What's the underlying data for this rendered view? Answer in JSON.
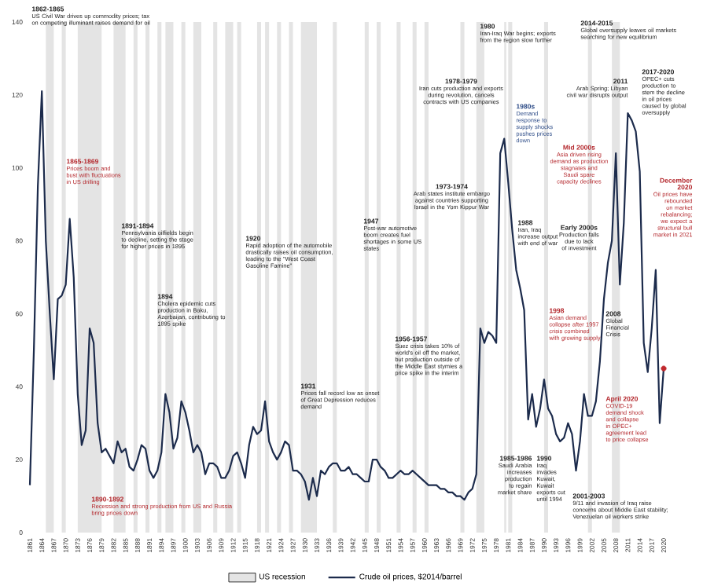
{
  "chart_data": {
    "type": "line",
    "xlim": [
      1861,
      2020
    ],
    "ylim": [
      0,
      140
    ],
    "xticks": [
      1861,
      1864,
      1867,
      1870,
      1873,
      1876,
      1879,
      1882,
      1885,
      1888,
      1891,
      1894,
      1897,
      1900,
      1903,
      1906,
      1909,
      1912,
      1915,
      1918,
      1921,
      1924,
      1927,
      1930,
      1933,
      1936,
      1939,
      1942,
      1945,
      1948,
      1951,
      1954,
      1957,
      1960,
      1963,
      1966,
      1969,
      1972,
      1975,
      1978,
      1981,
      1984,
      1987,
      1990,
      1993,
      1996,
      1999,
      2002,
      2005,
      2008,
      2011,
      2014,
      2017,
      2020
    ],
    "yticks": [
      0,
      20,
      40,
      60,
      80,
      100,
      120,
      140
    ],
    "x": [
      1861,
      1862,
      1863,
      1864,
      1865,
      1866,
      1867,
      1868,
      1869,
      1870,
      1871,
      1872,
      1873,
      1874,
      1875,
      1876,
      1877,
      1878,
      1879,
      1880,
      1881,
      1882,
      1883,
      1884,
      1885,
      1886,
      1887,
      1888,
      1889,
      1890,
      1891,
      1892,
      1893,
      1894,
      1895,
      1896,
      1897,
      1898,
      1899,
      1900,
      1901,
      1902,
      1903,
      1904,
      1905,
      1906,
      1907,
      1908,
      1909,
      1910,
      1911,
      1912,
      1913,
      1914,
      1915,
      1916,
      1917,
      1918,
      1919,
      1920,
      1921,
      1922,
      1923,
      1924,
      1925,
      1926,
      1927,
      1928,
      1929,
      1930,
      1931,
      1932,
      1933,
      1934,
      1935,
      1936,
      1937,
      1938,
      1939,
      1940,
      1941,
      1942,
      1943,
      1944,
      1945,
      1946,
      1947,
      1948,
      1949,
      1950,
      1951,
      1952,
      1953,
      1954,
      1955,
      1956,
      1957,
      1958,
      1959,
      1960,
      1961,
      1962,
      1963,
      1964,
      1965,
      1966,
      1967,
      1968,
      1969,
      1970,
      1971,
      1972,
      1973,
      1974,
      1975,
      1976,
      1977,
      1978,
      1979,
      1980,
      1981,
      1982,
      1983,
      1984,
      1985,
      1986,
      1987,
      1988,
      1989,
      1990,
      1991,
      1992,
      1993,
      1994,
      1995,
      1996,
      1997,
      1998,
      1999,
      2000,
      2001,
      2002,
      2003,
      2004,
      2005,
      2006,
      2007,
      2008,
      2009,
      2010,
      2011,
      2012,
      2013,
      2014,
      2015,
      2016,
      2017,
      2018,
      2019,
      2020
    ],
    "series": [
      {
        "name": "Crude oil prices, $2014/barrel",
        "color": "#1c2b4c",
        "values": [
          13,
          50,
          95,
          121,
          80,
          60,
          42,
          64,
          65,
          68,
          86,
          70,
          38,
          24,
          28,
          56,
          52,
          30,
          22,
          23,
          21,
          19,
          25,
          22,
          23,
          18,
          17,
          20,
          24,
          23,
          17,
          15,
          17,
          22,
          38,
          33,
          23,
          26,
          36,
          33,
          28,
          22,
          24,
          22,
          16,
          19,
          19,
          18,
          15,
          15,
          17,
          21,
          22,
          19,
          15,
          24,
          29,
          27,
          28,
          36,
          25,
          22,
          20,
          22,
          25,
          24,
          17,
          17,
          16,
          14,
          9,
          15,
          10,
          17,
          16,
          18,
          19,
          19,
          17,
          17,
          18,
          16,
          16,
          15,
          14,
          14,
          20,
          20,
          18,
          17,
          15,
          15,
          16,
          17,
          16,
          16,
          17,
          16,
          15,
          14,
          13,
          13,
          13,
          12,
          12,
          11,
          11,
          10,
          10,
          9,
          11,
          12,
          16,
          56,
          52,
          55,
          54,
          52,
          104,
          108,
          96,
          83,
          72,
          67,
          61,
          31,
          38,
          29,
          34,
          42,
          34,
          32,
          27,
          25,
          26,
          30,
          27,
          17,
          25,
          38,
          32,
          32,
          36,
          47,
          64,
          74,
          80,
          104,
          68,
          85,
          115,
          113,
          110,
          99,
          52,
          44,
          56,
          72,
          30,
          45
        ]
      },
      {
        "type": "scatter",
        "color": "#c0282d",
        "x": [
          2020
        ],
        "values": [
          45
        ]
      }
    ],
    "bands": [
      {
        "axis": "x",
        "from": 1865,
        "to": 1867,
        "label": "US recession",
        "color": "#e4e4e4"
      },
      {
        "axis": "x",
        "from": 1869,
        "to": 1870,
        "color": "#e4e4e4"
      },
      {
        "axis": "x",
        "from": 1873,
        "to": 1879,
        "color": "#e4e4e4"
      },
      {
        "axis": "x",
        "from": 1882,
        "to": 1885,
        "color": "#e4e4e4"
      },
      {
        "axis": "x",
        "from": 1887,
        "to": 1888,
        "color": "#e4e4e4"
      },
      {
        "axis": "x",
        "from": 1890,
        "to": 1891,
        "color": "#e4e4e4"
      },
      {
        "axis": "x",
        "from": 1893,
        "to": 1894,
        "color": "#e4e4e4"
      },
      {
        "axis": "x",
        "from": 1895,
        "to": 1897,
        "color": "#e4e4e4"
      },
      {
        "axis": "x",
        "from": 1899,
        "to": 1900,
        "color": "#e4e4e4"
      },
      {
        "axis": "x",
        "from": 1902,
        "to": 1904,
        "color": "#e4e4e4"
      },
      {
        "axis": "x",
        "from": 1907,
        "to": 1908,
        "color": "#e4e4e4"
      },
      {
        "axis": "x",
        "from": 1910,
        "to": 1912,
        "color": "#e4e4e4"
      },
      {
        "axis": "x",
        "from": 1913,
        "to": 1914,
        "color": "#e4e4e4"
      },
      {
        "axis": "x",
        "from": 1918,
        "to": 1919,
        "color": "#e4e4e4"
      },
      {
        "axis": "x",
        "from": 1920,
        "to": 1921,
        "color": "#e4e4e4"
      },
      {
        "axis": "x",
        "from": 1923,
        "to": 1924,
        "color": "#e4e4e4"
      },
      {
        "axis": "x",
        "from": 1926,
        "to": 1927,
        "color": "#e4e4e4"
      },
      {
        "axis": "x",
        "from": 1929,
        "to": 1933,
        "color": "#e4e4e4"
      },
      {
        "axis": "x",
        "from": 1937,
        "to": 1938,
        "color": "#e4e4e4"
      },
      {
        "axis": "x",
        "from": 1945,
        "to": 1946,
        "color": "#e4e4e4"
      },
      {
        "axis": "x",
        "from": 1948,
        "to": 1949,
        "color": "#e4e4e4"
      },
      {
        "axis": "x",
        "from": 1953,
        "to": 1954,
        "color": "#e4e4e4"
      },
      {
        "axis": "x",
        "from": 1957,
        "to": 1958,
        "color": "#e4e4e4"
      },
      {
        "axis": "x",
        "from": 1960,
        "to": 1961,
        "color": "#e4e4e4"
      },
      {
        "axis": "x",
        "from": 1969,
        "to": 1970,
        "color": "#e4e4e4"
      },
      {
        "axis": "x",
        "from": 1973,
        "to": 1975,
        "color": "#e4e4e4"
      },
      {
        "axis": "x",
        "from": 1980,
        "to": 1980.5,
        "color": "#e4e4e4"
      },
      {
        "axis": "x",
        "from": 1981,
        "to": 1982,
        "color": "#e4e4e4"
      },
      {
        "axis": "x",
        "from": 1990,
        "to": 1991,
        "color": "#e4e4e4"
      },
      {
        "axis": "x",
        "from": 2001,
        "to": 2002,
        "color": "#e4e4e4"
      },
      {
        "axis": "x",
        "from": 2007,
        "to": 2009,
        "color": "#e4e4e4"
      }
    ],
    "legend": "bottom",
    "marker": "none",
    "line_style": "solid",
    "grid": false,
    "annotations": [
      "1862-1865",
      "US Civil War drives up commodity prices; tax on competing illuminant raises demand for oil",
      "1865-1869",
      "Prices boom and bust with fluctuations in US drilling",
      "1891-1894",
      "Pennsylvania oilfields begin to decline, setting the stage for higher prices in 1895",
      "1894",
      "Cholera epidemic cuts production in Baku, Azerbaijan, contributing to 1895 spike",
      "1890-1892",
      "Recession and strong production from US and Russia bring prices down",
      "1920",
      "Rapid adoption of the automobile drastically raises oil consumption, leading to the \"West Coast Gasoline Famine\"",
      "1931",
      "Prices fall record low as onset of Great Depression reduces demand",
      "1947",
      "Post-war automotive boom creates fuel shortages in some US states",
      "1956-1957",
      "Suez crisis takes 10% of world's oil off the market, but production outside of the Middle East stymies a price spike in the interim",
      "1973-1974",
      "Arab states institute embargo against countries supporting Israel in the Yom Kippur War",
      "1978-1979",
      "Iran cuts production and exports during revolution, cancels contracts with US companies",
      "1980",
      "Iran-Iraq War begins; exports from the region slow further",
      "1980s",
      "Demand response to supply shocks pushes prices down",
      "1985-1986",
      "Saudi Arabia increases production to regain market share",
      "1988",
      "Iran, Iraq increase output with end of war",
      "1990",
      "Iraq invades Kuwait, Kuwait exports cut until 1994",
      "1998",
      "Asian demand collapse after 1997 crisis combined with growing supply",
      "2001-2003",
      "9/11 and invasion of Iraq raise concerns about Middle East stability; Venezuelan oil workers strike",
      "Early 2000s",
      "Production falls due to lack of investment",
      "Mid 2000s",
      "Asia driven rising demand as production stagnates and Saudi spare capacity declines",
      "2011",
      "Arab Spring; Libyan civil war disrupts output",
      "2014-2015",
      "Global oversupply leaves oil markets searching for new equilibrium",
      "2017-2020",
      "OPEC+ cuts production to stem the decline in oil prices caused by global oversupply",
      "December 2020",
      "Oil prices have rebounded on market rebalancing; we expect a structural bull market in 2021",
      "2008",
      "Global Financial Crisis",
      "April 2020",
      "COVID-19 demand shock and collapse in OPEC+ agreement lead to price collapse"
    ]
  }
}
